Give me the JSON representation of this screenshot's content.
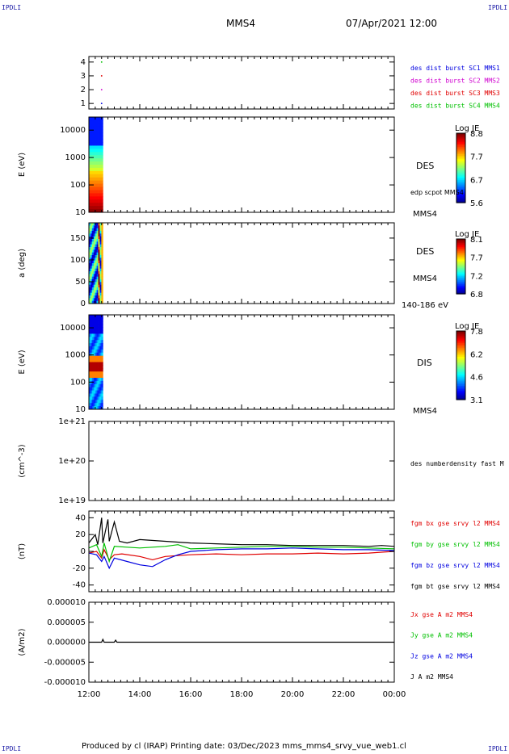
{
  "header": {
    "corner_tl": "IPDLI",
    "corner_tr": "IPDLI",
    "corner_bl": "IPDLI",
    "corner_br": "IPDLI",
    "spacecraft": "MMS4",
    "datetime": "07/Apr/2021 12:00"
  },
  "footer": {
    "text": "Produced by cl (IRAP)   Printing date: 03/Dec/2023   mms_mms4_srvy_vue_web1.cl"
  },
  "colors": {
    "red": "#e00000",
    "green": "#00c000",
    "blue": "#0000e0",
    "magenta": "#d000d0",
    "black": "#000000"
  },
  "chart_data": [
    {
      "id": "burst",
      "type": "scatter",
      "yticks": [
        "1",
        "2",
        "3",
        "4"
      ],
      "ylim": [
        0.6,
        4.4
      ],
      "legend": [
        {
          "label": "des dist burst SC1 MMS1",
          "color": "#0000e0"
        },
        {
          "label": "des dist burst SC2 MMS2",
          "color": "#d000d0"
        },
        {
          "label": "des dist burst SC3 MMS3",
          "color": "#e00000"
        },
        {
          "label": "des dist burst SC4 MMS4",
          "color": "#00c000"
        }
      ],
      "points": [
        {
          "x": 0.5,
          "y": 4,
          "color": "#00c000"
        },
        {
          "x": 0.5,
          "y": 3,
          "color": "#e00000"
        },
        {
          "x": 0.5,
          "y": 2,
          "color": "#d000d0"
        },
        {
          "x": 0.5,
          "y": 1,
          "color": "#0000e0"
        }
      ]
    },
    {
      "id": "des-energy",
      "type": "heatmap",
      "ylabel": "E (eV)",
      "yscale": "log",
      "yticks": [
        "10",
        "100",
        "1000",
        "10000"
      ],
      "ylim": [
        10,
        30000
      ],
      "xrange_hours": [
        0.0,
        0.55
      ],
      "side_labels": [
        "DES",
        "edp scpot MMS4",
        "MMS4"
      ],
      "colorbar": {
        "title": "Log JE",
        "ticks": [
          "8.8",
          "7.7",
          "6.7",
          "5.6"
        ]
      }
    },
    {
      "id": "des-pitch",
      "type": "heatmap",
      "ylabel": "a (deg)",
      "yticks": [
        "0",
        "50",
        "100",
        "150"
      ],
      "ylim": [
        0,
        185
      ],
      "xrange_hours": [
        0.0,
        0.55
      ],
      "side_labels": [
        "DES",
        "MMS4",
        "140-186 eV"
      ],
      "colorbar": {
        "title": "Log JE",
        "ticks": [
          "8.1",
          "7.7",
          "7.2",
          "6.8"
        ]
      }
    },
    {
      "id": "dis-energy",
      "type": "heatmap",
      "ylabel": "E (eV)",
      "yscale": "log",
      "yticks": [
        "10",
        "100",
        "1000",
        "10000"
      ],
      "ylim": [
        10,
        30000
      ],
      "xrange_hours": [
        0.0,
        0.55
      ],
      "side_labels": [
        "DIS",
        "MMS4"
      ],
      "colorbar": {
        "title": "Log JE",
        "ticks": [
          "7.8",
          "6.2",
          "4.6",
          "3.1"
        ]
      }
    },
    {
      "id": "density",
      "type": "line",
      "ylabel": "(cm^-3)",
      "yscale": "log",
      "yticks": [
        "1e+19",
        "1e+20",
        "1e+21"
      ],
      "ylim": [
        1e+19,
        1e+21
      ],
      "legend": [
        {
          "label": "des numberdensity fast M",
          "color": "#000000"
        }
      ],
      "series": []
    },
    {
      "id": "magnetic-field",
      "type": "line",
      "ylabel": "(nT)",
      "yticks": [
        "-40",
        "-20",
        "0",
        "20",
        "40"
      ],
      "ylim": [
        -48,
        48
      ],
      "legend": [
        {
          "label": "fgm bx gse srvy l2 MMS4",
          "color": "#e00000"
        },
        {
          "label": "fgm by gse srvy l2 MMS4",
          "color": "#00c000"
        },
        {
          "label": "fgm bz gse srvy l2 MMS4",
          "color": "#0000e0"
        },
        {
          "label": "fgm bt gse srvy l2 MMS4",
          "color": "#000000"
        }
      ],
      "series": [
        {
          "color": "#000000",
          "x": [
            0,
            0.25,
            0.35,
            0.5,
            0.55,
            0.75,
            0.8,
            1.0,
            1.2,
            1.5,
            2,
            3,
            4,
            5,
            6,
            7,
            8,
            9,
            10,
            11,
            11.5,
            12
          ],
          "y": [
            10,
            20,
            8,
            40,
            10,
            38,
            12,
            35,
            12,
            10,
            14,
            12,
            10,
            9,
            8,
            8,
            7,
            7,
            7,
            6,
            7,
            6
          ]
        },
        {
          "color": "#e00000",
          "x": [
            0,
            0.3,
            0.5,
            0.6,
            0.8,
            1.0,
            1.3,
            2,
            2.5,
            3,
            3.5,
            4,
            5,
            6,
            7,
            8,
            9,
            10,
            11,
            11.5,
            12
          ],
          "y": [
            -2,
            0,
            -8,
            2,
            -10,
            -4,
            -3,
            -6,
            -10,
            -6,
            -5,
            -4,
            -3,
            -4,
            -3,
            -3,
            -2,
            -3,
            -2,
            -1,
            0
          ]
        },
        {
          "color": "#00c000",
          "x": [
            0,
            0.3,
            0.5,
            0.6,
            0.8,
            1.0,
            1.5,
            2,
            3,
            3.5,
            4,
            5,
            6,
            7,
            8,
            9,
            10,
            11,
            12
          ],
          "y": [
            4,
            8,
            -6,
            10,
            -12,
            6,
            5,
            4,
            6,
            8,
            3,
            4,
            5,
            6,
            6,
            5,
            5,
            4,
            3
          ]
        },
        {
          "color": "#0000e0",
          "x": [
            0,
            0.3,
            0.5,
            0.6,
            0.8,
            1.0,
            1.5,
            2,
            2.5,
            3,
            3.5,
            4,
            5,
            6,
            7,
            8,
            9,
            10,
            11,
            12
          ],
          "y": [
            -2,
            -4,
            -12,
            -6,
            -20,
            -8,
            -12,
            -16,
            -18,
            -10,
            -4,
            0,
            2,
            3,
            3,
            4,
            3,
            2,
            2,
            1
          ]
        }
      ]
    },
    {
      "id": "current-density",
      "type": "line",
      "ylabel": "(A/m2)",
      "yticks": [
        "-0.000010",
        "-0.000005",
        "0.000000",
        "0.000005",
        "0.000010"
      ],
      "ylim": [
        -1e-05,
        1e-05
      ],
      "legend": [
        {
          "label": "Jx gse A m2 MMS4",
          "color": "#e00000"
        },
        {
          "label": "Jy gse A m2 MMS4",
          "color": "#00c000"
        },
        {
          "label": "Jz gse A m2 MMS4",
          "color": "#0000e0"
        },
        {
          "label": "J A m2 MMS4",
          "color": "#000000"
        }
      ],
      "series": [
        {
          "color": "#000000",
          "x": [
            0,
            0.5,
            0.55,
            0.6,
            1.0,
            1.05,
            1.1,
            2,
            4,
            6,
            8,
            10,
            12
          ],
          "y": [
            0,
            0,
            7e-07,
            0,
            0,
            5e-07,
            0,
            0,
            0,
            0,
            0,
            0,
            0
          ]
        }
      ]
    }
  ],
  "time_axis": {
    "ticks": [
      "12:00",
      "14:00",
      "16:00",
      "18:00",
      "20:00",
      "22:00",
      "00:00"
    ],
    "range_hours": [
      0,
      12
    ]
  }
}
